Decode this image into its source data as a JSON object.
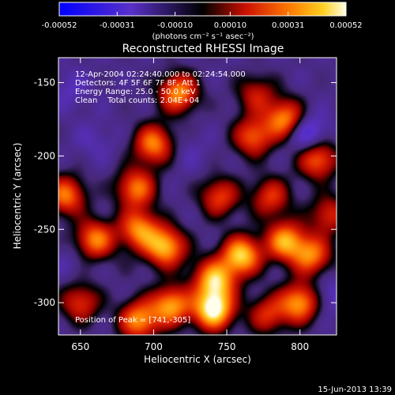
{
  "chart_data": {
    "type": "heatmap",
    "title": "Reconstructed RHESSI Image",
    "xlabel": "Heliocentric X (arcsec)",
    "ylabel": "Heliocentric Y (arcsec)",
    "xlim": [
      635,
      825
    ],
    "ylim": [
      -322,
      -133
    ],
    "xticks": [
      650,
      700,
      750,
      800
    ],
    "yticks": [
      -150,
      -200,
      -250,
      -300
    ],
    "colorbar": {
      "min": -0.00052,
      "max": 0.00052,
      "ticks": [
        "-0.00052",
        "-0.00031",
        "-0.00010",
        "0.00010",
        "0.00031",
        "0.00052"
      ],
      "units_label": "(photons cm⁻² s⁻¹ asec⁻²)"
    },
    "annotations": {
      "time": "12-Apr-2004 02:24:40.000 to 02:24:54.000",
      "detectors": "Detectors: 4F 5F 6F 7F 8F, Att 1",
      "energy": "Energy Range: 25.0 - 50.0 keV",
      "clean": "Clean    Total counts: 2.04E+04",
      "peak": "Position of Peak = [741,-305]"
    },
    "peak": {
      "x": 741,
      "y": -305
    },
    "sources": [
      {
        "x": 741,
        "y": -305,
        "value": 0.00052
      },
      {
        "x": 712,
        "y": -302,
        "value": 0.00036
      },
      {
        "x": 690,
        "y": -312,
        "value": 0.00034
      },
      {
        "x": 760,
        "y": -268,
        "value": 0.00044
      },
      {
        "x": 742,
        "y": -285,
        "value": 0.0004
      },
      {
        "x": 708,
        "y": -262,
        "value": 0.0004
      },
      {
        "x": 690,
        "y": -250,
        "value": 0.00032
      },
      {
        "x": 660,
        "y": -257,
        "value": 0.00032
      },
      {
        "x": 640,
        "y": -227,
        "value": 0.0003
      },
      {
        "x": 650,
        "y": -300,
        "value": 0.0002
      },
      {
        "x": 700,
        "y": -192,
        "value": 0.00032
      },
      {
        "x": 688,
        "y": -222,
        "value": 0.0003
      },
      {
        "x": 717,
        "y": -157,
        "value": 0.00034
      },
      {
        "x": 790,
        "y": -175,
        "value": 0.00034
      },
      {
        "x": 768,
        "y": -187,
        "value": 0.00026
      },
      {
        "x": 812,
        "y": -202,
        "value": 0.0003
      },
      {
        "x": 790,
        "y": -258,
        "value": 0.00036
      },
      {
        "x": 808,
        "y": -268,
        "value": 0.0003
      },
      {
        "x": 800,
        "y": -300,
        "value": 0.00036
      },
      {
        "x": 745,
        "y": -228,
        "value": 0.00022
      },
      {
        "x": 780,
        "y": -228,
        "value": 0.0002
      },
      {
        "x": 820,
        "y": -240,
        "value": 0.00018
      },
      {
        "x": 660,
        "y": -190,
        "value": -0.0002
      },
      {
        "x": 805,
        "y": -185,
        "value": -0.0004
      },
      {
        "x": 643,
        "y": -155,
        "value": -0.00022
      },
      {
        "x": 820,
        "y": -295,
        "value": -0.00025
      },
      {
        "x": 770,
        "y": -158,
        "value": 0.00014
      },
      {
        "x": 725,
        "y": -198,
        "value": -0.00018
      },
      {
        "x": 757,
        "y": -205,
        "value": -0.00012
      },
      {
        "x": 683,
        "y": -275,
        "value": -0.0001
      },
      {
        "x": 728,
        "y": -275,
        "value": -8e-05
      },
      {
        "x": 643,
        "y": -272,
        "value": -0.00018
      },
      {
        "x": 778,
        "y": -308,
        "value": 0.00018
      }
    ]
  },
  "footer": {
    "timestamp": "15-Jun-2013 13:39"
  }
}
